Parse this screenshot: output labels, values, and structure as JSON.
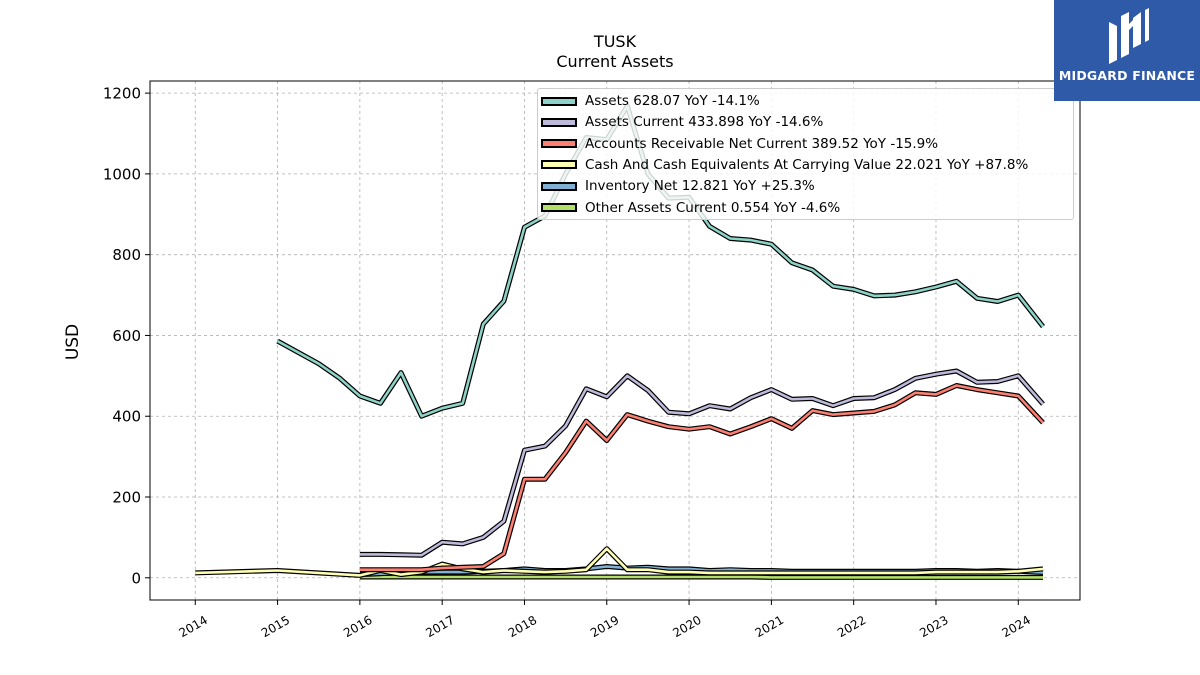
{
  "header": {
    "ticker": "TUSK",
    "subtitle": "Current  Assets"
  },
  "brand": {
    "name": "MIDGARD FINANCE",
    "logo_icon": "midgard-logo-icon",
    "color": "#2f5aa8"
  },
  "chart_data": {
    "type": "line",
    "title": "TUSK",
    "subtitle": "Current  Assets",
    "ylabel": "USD",
    "xlabel": "",
    "xlim": [
      2013.45,
      2024.75
    ],
    "ylim": [
      -55,
      1230
    ],
    "grid": true,
    "legend_placement": "top-right",
    "x_ticks": [
      "2014",
      "2015",
      "2016",
      "2017",
      "2018",
      "2019",
      "2020",
      "2021",
      "2022",
      "2023",
      "2024"
    ],
    "y_ticks": [
      "0",
      "200",
      "400",
      "600",
      "800",
      "1000",
      "1200"
    ],
    "series": [
      {
        "name": "Assets",
        "legend": "Assets  628.07 YoY -14.1%",
        "color": "#8dd3c7",
        "x": [
          2015.0,
          2015.5,
          2015.75,
          2016.0,
          2016.25,
          2016.5,
          2016.75,
          2017.0,
          2017.25,
          2017.5,
          2017.75,
          2018.0,
          2018.25,
          2018.5,
          2018.75,
          2019.0,
          2019.25,
          2019.5,
          2019.75,
          2020.0,
          2020.25,
          2020.5,
          2020.75,
          2021.0,
          2021.25,
          2021.5,
          2021.75,
          2022.0,
          2022.25,
          2022.5,
          2022.75,
          2023.0,
          2023.25,
          2023.5,
          2023.75,
          2024.0,
          2024.3
        ],
        "values": [
          586,
          530,
          495,
          450,
          432,
          508,
          400,
          420,
          432,
          628,
          685,
          868,
          896,
          1000,
          1090,
          1085,
          1168,
          1000,
          940,
          942,
          870,
          840,
          836,
          826,
          780,
          762,
          722,
          714,
          698,
          700,
          708,
          720,
          734,
          692,
          684,
          700,
          622
        ]
      },
      {
        "name": "Assets Current",
        "legend": "Assets Current  433.898 YoY -14.6%",
        "color": "#bebada",
        "x": [
          2016.0,
          2016.25,
          2016.5,
          2016.75,
          2017.0,
          2017.25,
          2017.5,
          2017.75,
          2018.0,
          2018.25,
          2018.5,
          2018.75,
          2019.0,
          2019.25,
          2019.5,
          2019.75,
          2020.0,
          2020.25,
          2020.5,
          2020.75,
          2021.0,
          2021.25,
          2021.5,
          2021.75,
          2022.0,
          2022.25,
          2022.5,
          2022.75,
          2023.0,
          2023.25,
          2023.5,
          2023.75,
          2024.0,
          2024.3
        ],
        "values": [
          58,
          58,
          57,
          56,
          88,
          84,
          100,
          140,
          316,
          326,
          376,
          468,
          448,
          500,
          464,
          410,
          406,
          426,
          418,
          446,
          466,
          442,
          444,
          426,
          444,
          446,
          466,
          494,
          504,
          512,
          484,
          486,
          500,
          430
        ]
      },
      {
        "name": "Accounts Receivable Net Current",
        "legend": "Accounts Receivable Net Current  389.52 YoY -15.9%",
        "color": "#fb8072",
        "x": [
          2016.0,
          2016.25,
          2016.5,
          2016.75,
          2017.0,
          2017.25,
          2017.5,
          2017.75,
          2018.0,
          2018.25,
          2018.5,
          2018.75,
          2019.0,
          2019.25,
          2019.5,
          2019.75,
          2020.0,
          2020.25,
          2020.5,
          2020.75,
          2021.0,
          2021.25,
          2021.5,
          2021.75,
          2022.0,
          2022.25,
          2022.5,
          2022.75,
          2023.0,
          2023.25,
          2023.5,
          2023.75,
          2024.0,
          2024.3
        ],
        "values": [
          20,
          20,
          20,
          20,
          24,
          26,
          28,
          60,
          244,
          244,
          310,
          388,
          340,
          404,
          388,
          374,
          368,
          374,
          356,
          374,
          394,
          370,
          414,
          404,
          408,
          412,
          428,
          458,
          454,
          476,
          466,
          458,
          450,
          384
        ]
      },
      {
        "name": "Cash And Cash Equivalents At Carrying Value",
        "legend": "Cash And Cash Equivalents At Carrying Value  22.021 YoY +87.8%",
        "color": "#ffffb3",
        "x": [
          2014.0,
          2015.0,
          2016.0,
          2016.25,
          2016.5,
          2016.75,
          2017.0,
          2017.25,
          2017.5,
          2017.75,
          2018.0,
          2018.25,
          2018.5,
          2018.75,
          2019.0,
          2019.25,
          2019.5,
          2019.75,
          2020.0,
          2020.25,
          2020.5,
          2020.75,
          2021.0,
          2021.25,
          2021.5,
          2021.75,
          2022.0,
          2022.25,
          2022.5,
          2022.75,
          2023.0,
          2023.25,
          2023.5,
          2023.75,
          2024.0,
          2024.3
        ],
        "values": [
          12,
          18,
          6,
          18,
          8,
          14,
          34,
          22,
          14,
          18,
          16,
          14,
          16,
          20,
          72,
          20,
          20,
          14,
          14,
          12,
          12,
          12,
          12,
          12,
          12,
          12,
          12,
          12,
          12,
          12,
          14,
          14,
          14,
          14,
          16,
          22
        ]
      },
      {
        "name": "Inventory Net",
        "legend": "Inventory Net  12.821 YoY +25.3%",
        "color": "#80b1d3",
        "x": [
          2016.0,
          2016.25,
          2016.5,
          2016.75,
          2017.0,
          2017.25,
          2017.5,
          2017.75,
          2018.0,
          2018.25,
          2018.5,
          2018.75,
          2019.0,
          2019.25,
          2019.5,
          2019.75,
          2020.0,
          2020.25,
          2020.5,
          2020.75,
          2021.0,
          2021.25,
          2021.5,
          2021.75,
          2022.0,
          2022.25,
          2022.5,
          2022.75,
          2023.0,
          2023.25,
          2023.5,
          2023.75,
          2024.0,
          2024.3
        ],
        "values": [
          8,
          10,
          12,
          14,
          14,
          14,
          16,
          18,
          22,
          18,
          18,
          22,
          28,
          24,
          26,
          22,
          22,
          18,
          20,
          18,
          18,
          16,
          16,
          16,
          16,
          16,
          16,
          16,
          18,
          18,
          16,
          18,
          16,
          13
        ]
      },
      {
        "name": "Other Assets Current",
        "legend": "Other Assets Current  0.554 YoY -4.6%",
        "color": "#b3de69",
        "x": [
          2016.0,
          2016.25,
          2016.5,
          2016.75,
          2017.0,
          2017.25,
          2017.5,
          2017.75,
          2018.0,
          2018.25,
          2018.5,
          2018.75,
          2019.0,
          2019.25,
          2019.5,
          2019.75,
          2020.0,
          2020.25,
          2020.5,
          2020.75,
          2021.0,
          2021.25,
          2021.5,
          2021.75,
          2022.0,
          2022.25,
          2022.5,
          2022.75,
          2023.0,
          2023.25,
          2023.5,
          2023.75,
          2024.0,
          2024.3
        ],
        "values": [
          2,
          2,
          2,
          2,
          2,
          2,
          2,
          2,
          2,
          2,
          2,
          2,
          2,
          2,
          2,
          2,
          2,
          2,
          2,
          2,
          1,
          1,
          1,
          1,
          1,
          1,
          1,
          1,
          1,
          1,
          1,
          1,
          1,
          1
        ]
      }
    ]
  }
}
